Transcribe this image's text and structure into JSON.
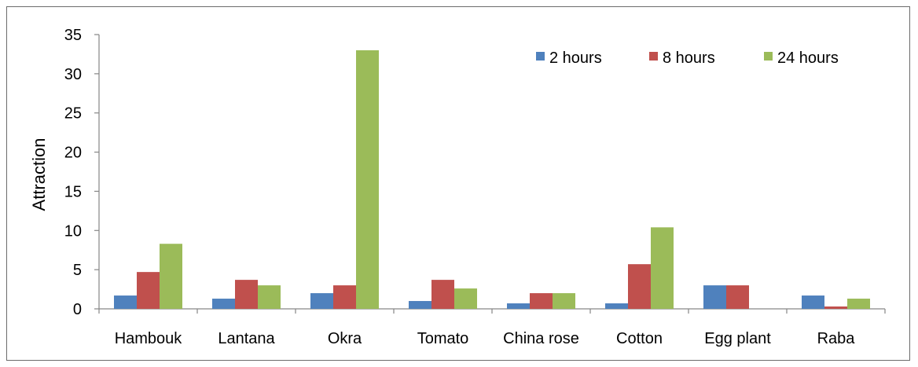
{
  "chart_data": {
    "type": "bar",
    "title": "",
    "xlabel": "",
    "ylabel": "Attraction",
    "ylim": [
      0,
      35
    ],
    "yticks": [
      0,
      5,
      10,
      15,
      20,
      25,
      30,
      35
    ],
    "categories": [
      "Hambouk",
      "Lantana",
      "Okra",
      "Tomato",
      "China rose",
      "Cotton",
      "Egg plant",
      "Raba"
    ],
    "series": [
      {
        "name": "2 hours",
        "color": "#4F81BD",
        "values": [
          1.7,
          1.3,
          2.0,
          1.0,
          0.7,
          0.7,
          3.0,
          1.7
        ]
      },
      {
        "name": "8 hours",
        "color": "#C0504D",
        "values": [
          4.7,
          3.7,
          3.0,
          3.7,
          2.0,
          5.7,
          3.0,
          0.3
        ]
      },
      {
        "name": "24 hours",
        "color": "#9BBB59",
        "values": [
          8.3,
          3.0,
          33.0,
          2.6,
          2.0,
          10.4,
          0.0,
          1.3
        ]
      }
    ],
    "grid": false,
    "legend_position": "top-right"
  }
}
